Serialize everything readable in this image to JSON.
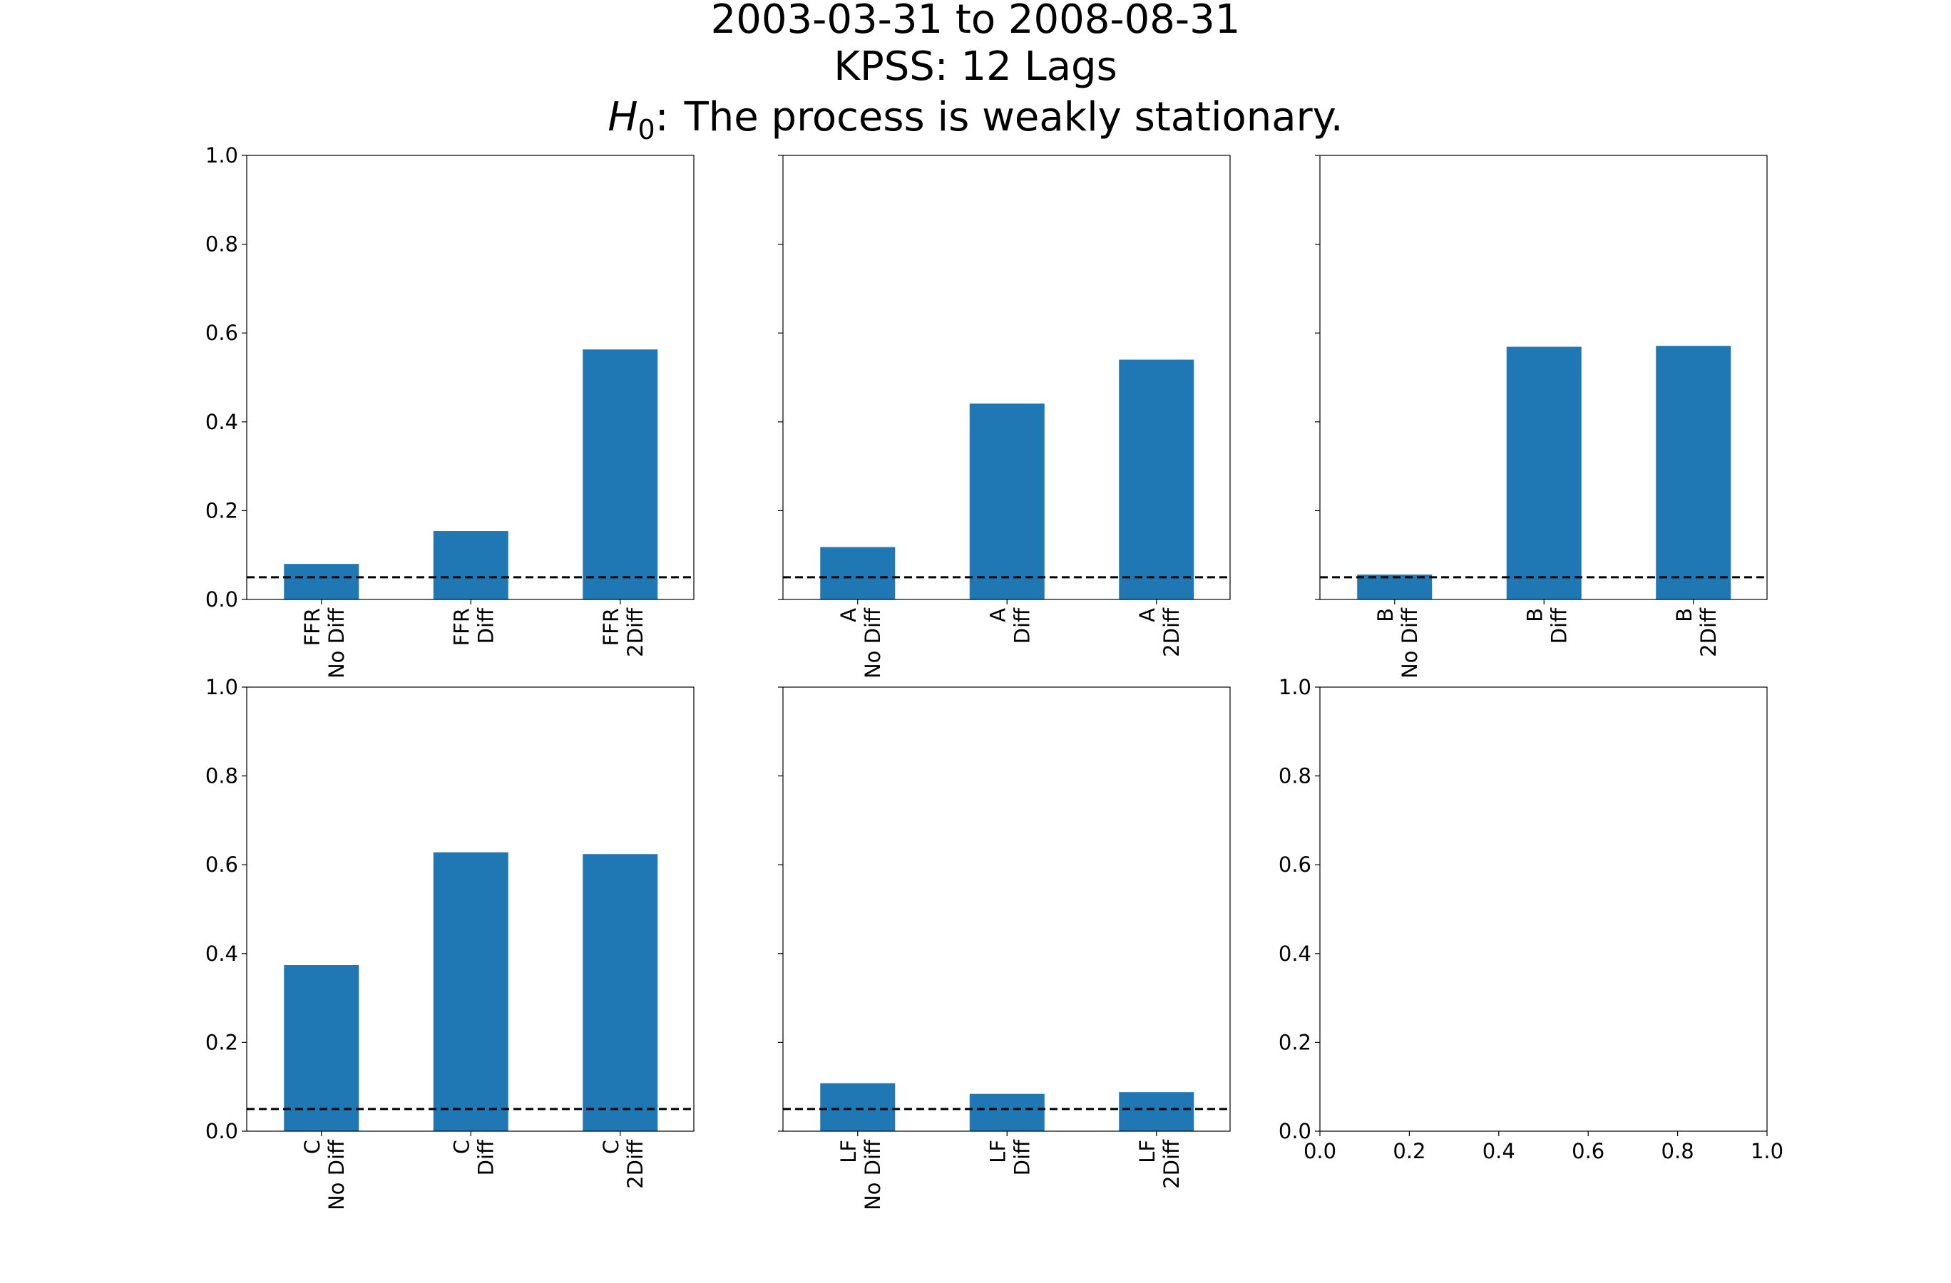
{
  "title": {
    "line1": "2003-03-31 to 2008-08-31",
    "line2": "KPSS: 12 Lags",
    "line3_symbol": "H",
    "line3_subscript": "0",
    "line3_colon": ":",
    "line3_text": "The process is weakly stationary."
  },
  "colors": {
    "bar": "#1f77b4",
    "reference_line": "#000000"
  },
  "chart_data": [
    {
      "type": "bar",
      "panel": "top-left",
      "categories": [
        [
          "FFR",
          "No Diff"
        ],
        [
          "FFR",
          "Diff"
        ],
        [
          "FFR",
          "2Diff"
        ]
      ],
      "values": [
        0.08,
        0.154,
        0.563
      ],
      "ylim": [
        0,
        1
      ],
      "yticks": [
        "0.0",
        "0.2",
        "0.4",
        "0.6",
        "0.8",
        "1.0"
      ],
      "show_ytick_labels": true,
      "reference_line": 0.05
    },
    {
      "type": "bar",
      "panel": "top-middle",
      "categories": [
        [
          "A",
          "No Diff"
        ],
        [
          "A",
          "Diff"
        ],
        [
          "A",
          "2Diff"
        ]
      ],
      "values": [
        0.118,
        0.441,
        0.54
      ],
      "ylim": [
        0,
        1
      ],
      "yticks": [
        "0.0",
        "0.2",
        "0.4",
        "0.6",
        "0.8",
        "1.0"
      ],
      "show_ytick_labels": false,
      "reference_line": 0.05
    },
    {
      "type": "bar",
      "panel": "top-right",
      "categories": [
        [
          "B",
          "No Diff"
        ],
        [
          "B",
          "Diff"
        ],
        [
          "B",
          "2Diff"
        ]
      ],
      "values": [
        0.056,
        0.569,
        0.571
      ],
      "ylim": [
        0,
        1
      ],
      "yticks": [
        "0.0",
        "0.2",
        "0.4",
        "0.6",
        "0.8",
        "1.0"
      ],
      "show_ytick_labels": false,
      "reference_line": 0.05
    },
    {
      "type": "bar",
      "panel": "bottom-left",
      "categories": [
        [
          "C",
          "No Diff"
        ],
        [
          "C",
          "Diff"
        ],
        [
          "C",
          "2Diff"
        ]
      ],
      "values": [
        0.374,
        0.628,
        0.624
      ],
      "ylim": [
        0,
        1
      ],
      "yticks": [
        "0.0",
        "0.2",
        "0.4",
        "0.6",
        "0.8",
        "1.0"
      ],
      "show_ytick_labels": true,
      "reference_line": 0.05
    },
    {
      "type": "bar",
      "panel": "bottom-middle",
      "categories": [
        [
          "LF",
          "No Diff"
        ],
        [
          "LF",
          "Diff"
        ],
        [
          "LF",
          "2Diff"
        ]
      ],
      "values": [
        0.108,
        0.084,
        0.088
      ],
      "ylim": [
        0,
        1
      ],
      "yticks": [
        "0.0",
        "0.2",
        "0.4",
        "0.6",
        "0.8",
        "1.0"
      ],
      "show_ytick_labels": false,
      "reference_line": 0.05
    },
    {
      "type": "empty",
      "panel": "bottom-right",
      "xlim": [
        0,
        1
      ],
      "ylim": [
        0,
        1
      ],
      "xticks": [
        "0.0",
        "0.2",
        "0.4",
        "0.6",
        "0.8",
        "1.0"
      ],
      "yticks": [
        "0.0",
        "0.2",
        "0.4",
        "0.6",
        "0.8",
        "1.0"
      ],
      "show_ytick_labels": true
    }
  ]
}
